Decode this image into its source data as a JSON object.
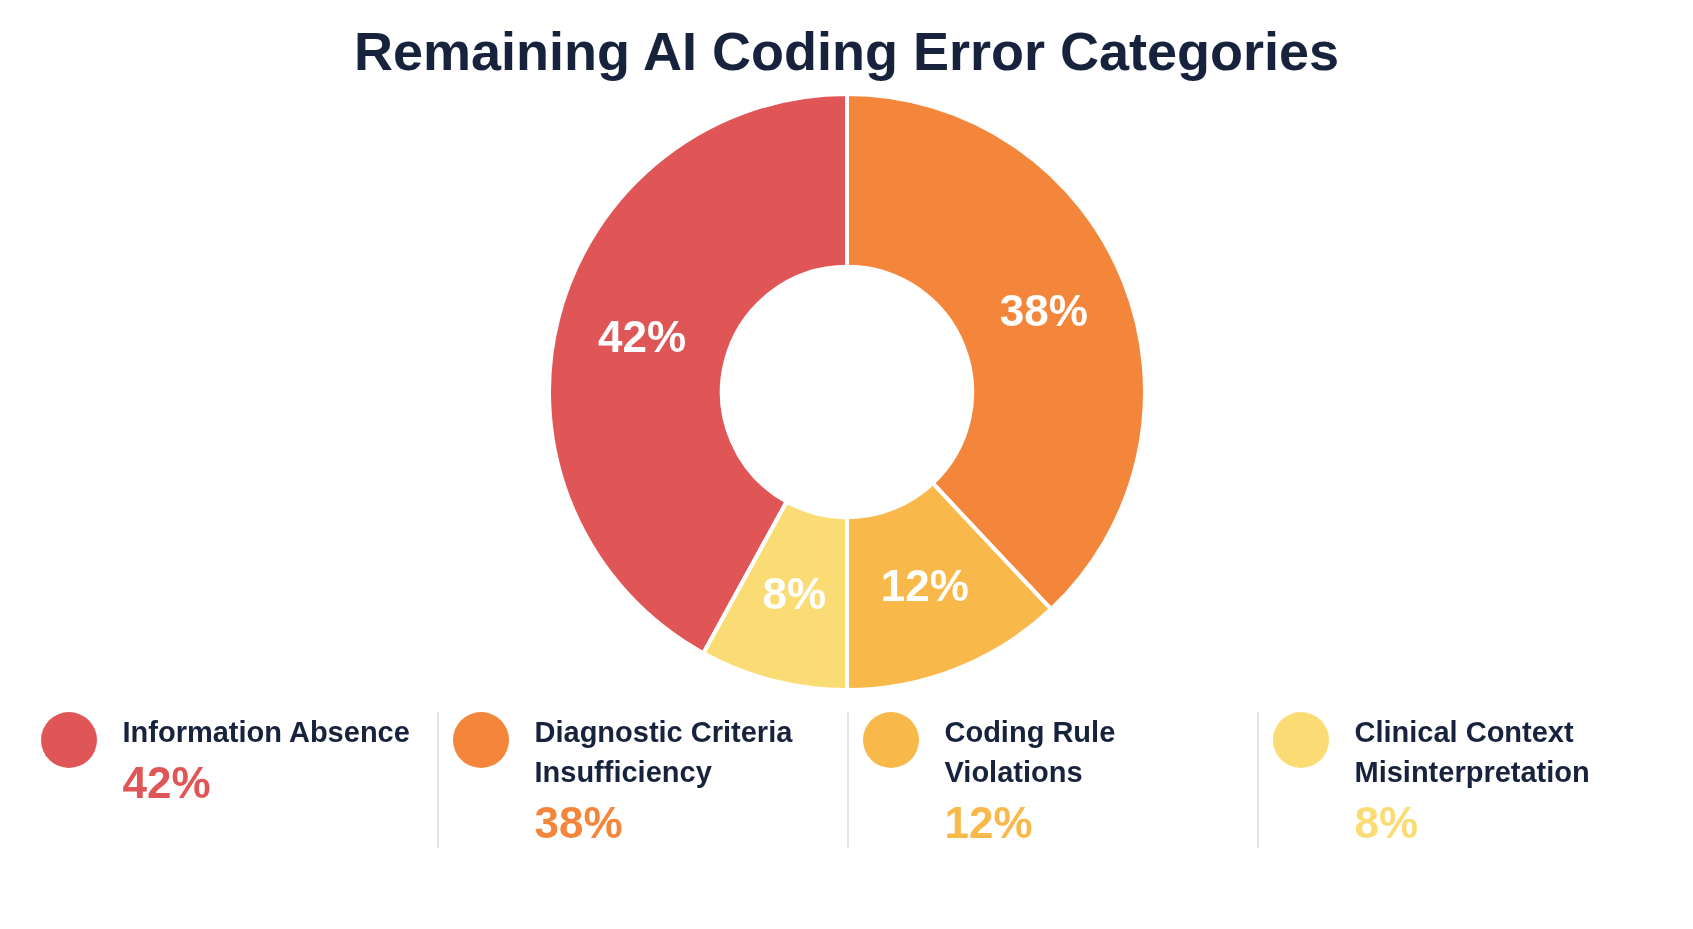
{
  "chart_data": {
    "type": "donut",
    "title": "Remaining AI Coding Error Categories",
    "categories": [
      "Information Absence",
      "Diagnostic Criteria Insufficiency",
      "Coding Rule Violations",
      "Clinical Context Misinterpretation"
    ],
    "values": [
      42,
      38,
      12,
      8
    ],
    "colors": [
      "#e05656",
      "#f3863a",
      "#f9b84a",
      "#fbdc74"
    ],
    "value_labels": [
      "42%",
      "38%",
      "12%",
      "8%"
    ],
    "legend": "bottom"
  }
}
